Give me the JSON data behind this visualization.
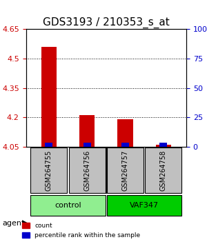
{
  "title": "GDS3193 / 210353_s_at",
  "samples": [
    "GSM264755",
    "GSM264756",
    "GSM264757",
    "GSM264758"
  ],
  "red_values": [
    4.56,
    4.21,
    4.19,
    4.06
  ],
  "blue_values": [
    4.07,
    4.07,
    4.07,
    4.07
  ],
  "red_base": 4.05,
  "ylim_min": 4.05,
  "ylim_max": 4.65,
  "yticks_left": [
    4.05,
    4.2,
    4.35,
    4.5,
    4.65
  ],
  "yticks_right": [
    0,
    25,
    50,
    75,
    100
  ],
  "yticks_right_labels": [
    "0",
    "25",
    "50",
    "75",
    "100%"
  ],
  "groups": [
    {
      "label": "control",
      "indices": [
        0,
        1
      ],
      "color": "#90EE90"
    },
    {
      "label": "VAF347",
      "indices": [
        2,
        3
      ],
      "color": "#00CC00"
    }
  ],
  "group_row_label": "agent",
  "legend_red": "count",
  "legend_blue": "percentile rank within the sample",
  "red_color": "#CC0000",
  "blue_color": "#0000CC",
  "bar_width": 0.4,
  "grid_color": "#000000",
  "sample_box_color": "#C0C0C0",
  "title_fontsize": 11,
  "tick_fontsize": 8,
  "label_fontsize": 8
}
